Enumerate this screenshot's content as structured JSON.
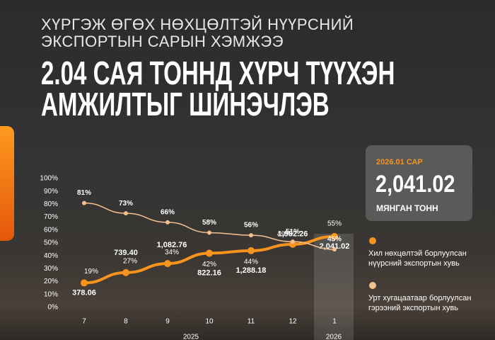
{
  "header": {
    "supertitle": [
      "ХҮРГЭЖ ӨГӨХ НӨХЦӨЛТЭЙ НҮҮРСНИЙ",
      "ЭКСПОРТЫН САРЫН ХЭМЖЭЭ"
    ],
    "headline": [
      "2.04 САЯ ТОННД ХҮРЧ ТҮҮХЭН",
      "АМЖИЛТЫГ ШИНЭЧЛЭВ"
    ]
  },
  "callout": {
    "period": "2026.01 САР",
    "value": "2,041.02",
    "unit": "МЯНГАН ТОНН"
  },
  "chart_data": {
    "type": "line",
    "categories": [
      "7",
      "8",
      "9",
      "10",
      "11",
      "12",
      "1"
    ],
    "year_labels": [
      "2025",
      "2026"
    ],
    "ylim": [
      0,
      100
    ],
    "yticks": [
      {
        "value": 0,
        "label": "0%"
      },
      {
        "value": 10,
        "label": "10%"
      },
      {
        "value": 20,
        "label": "20%"
      },
      {
        "value": 30,
        "label": "30%"
      },
      {
        "value": 40,
        "label": "40%"
      },
      {
        "value": 50,
        "label": "50%"
      },
      {
        "value": 60,
        "label": "60%"
      },
      {
        "value": 70,
        "label": "70%"
      },
      {
        "value": 80,
        "label": "80%"
      },
      {
        "value": 90,
        "label": "90%"
      },
      {
        "value": 100,
        "label": "100%"
      }
    ],
    "grid": false,
    "series": [
      {
        "name": "Хил нөхцөлтэй борлуулсан нүүрсний экспортын хувь",
        "color": "#f7941d",
        "values": [
          19,
          27,
          34,
          42,
          44,
          49,
          55
        ],
        "value_labels": [
          "19%",
          "27%",
          "34%",
          "42%",
          "44%",
          "49%",
          "55%"
        ],
        "volumes": [
          378.06,
          739.4,
          1082.76,
          822.16,
          1288.18,
          1982.26,
          2041.02
        ],
        "volume_labels": [
          "378.06",
          "739.40",
          "1,082.76",
          "822.16",
          "1,288.18",
          "1,982.26",
          "2,041.02"
        ]
      },
      {
        "name": "Урт хугацаатаар борлуулсан гэрээний экспортын хувь",
        "color": "#f3c08e",
        "values": [
          81,
          73,
          66,
          58,
          56,
          51,
          45
        ],
        "value_labels": [
          "81%",
          "73%",
          "66%",
          "58%",
          "56%",
          "51%",
          "45%"
        ]
      }
    ]
  }
}
